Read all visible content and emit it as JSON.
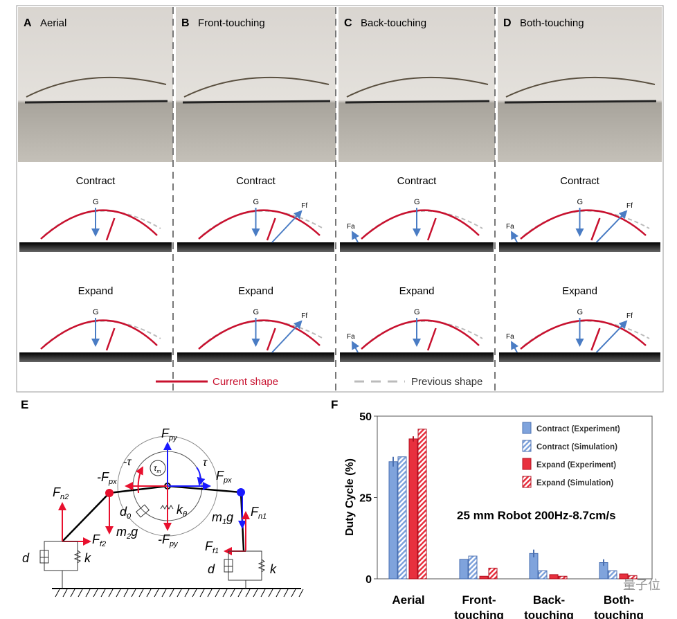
{
  "panels_top": [
    {
      "letter": "A",
      "title": "Aerial",
      "front_force": "",
      "back_force": "",
      "expand_front": "",
      "expand_back": ""
    },
    {
      "letter": "B",
      "title": "Front-touching",
      "front_force": "Ff",
      "back_force": "",
      "expand_front": "Ff",
      "expand_back": ""
    },
    {
      "letter": "C",
      "title": "Back-touching",
      "front_force": "",
      "back_force": "Fa",
      "expand_front": "",
      "expand_back": "Fa"
    },
    {
      "letter": "D",
      "title": "Both-touching",
      "front_force": "Ff",
      "back_force": "Fa",
      "expand_front": "Ff",
      "expand_back": "Fa"
    }
  ],
  "row_labels": {
    "contract": "Contract",
    "expand": "Expand",
    "gravity": "G"
  },
  "legend_top": {
    "current": "Current shape",
    "previous": "Previous shape"
  },
  "colors": {
    "current": "#c8102e",
    "previous": "#bbbbbb",
    "force": "#4a7cc4",
    "blue": "#1a1aff",
    "red": "#e8102e"
  },
  "panel_e": {
    "letter": "E",
    "labels": {
      "fpy": "F",
      "fpy_sub": "py",
      "neg_fpy": "-F",
      "fpx": "F",
      "fpx_sub": "px",
      "neg_fpx": "-F",
      "tau": "τ",
      "neg_tau": "-τ",
      "tau_m": "τ",
      "tau_m_sub": "m",
      "fn2": "F",
      "fn2_sub": "n2",
      "fn1": "F",
      "fn1_sub": "n1",
      "ff2": "F",
      "ff2_sub": "f2",
      "ff1": "F",
      "ff1_sub": "f1",
      "m2g": "m",
      "m2g_sub": "2",
      "m1g": "m",
      "m1g_sub": "1",
      "g": "g",
      "d0": "d",
      "d0_sub": "0",
      "k0": "k",
      "k0_sub": "θ",
      "d": "d",
      "k": "k"
    }
  },
  "panel_f": {
    "letter": "F",
    "annotation": "25 mm Robot 200Hz-8.7cm/s",
    "watermark": "量子位"
  },
  "chart_data": {
    "type": "bar",
    "title": "",
    "xlabel": "",
    "ylabel": "Duty Cycle (%)",
    "ylim": [
      0,
      50
    ],
    "yticks": [
      0,
      25,
      50
    ],
    "grid": false,
    "legend_position": "top-right",
    "categories": [
      [
        "Aerial"
      ],
      [
        "Front-",
        "touching"
      ],
      [
        "Back-",
        "touching"
      ],
      [
        "Both-",
        "touching"
      ]
    ],
    "series": [
      {
        "name": "Contract (Experiment)",
        "color": "#7fa3dc",
        "hatched": false,
        "values": [
          36,
          6,
          7.8,
          5
        ],
        "errors": [
          1.5,
          0,
          1.2,
          1
        ]
      },
      {
        "name": "Contract (Simulation)",
        "color": "#7fa3dc",
        "hatched": true,
        "values": [
          37.5,
          7,
          2.5,
          2.5
        ],
        "errors": [
          0,
          0,
          0,
          0
        ]
      },
      {
        "name": "Expand (Experiment)",
        "color": "#e8303e",
        "hatched": false,
        "values": [
          43,
          0.8,
          1.3,
          1.5
        ],
        "errors": [
          0.8,
          0,
          0,
          0
        ]
      },
      {
        "name": "Expand (Simulation)",
        "color": "#e8303e",
        "hatched": true,
        "values": [
          46,
          3.3,
          0.8,
          1
        ],
        "errors": [
          0,
          0,
          0,
          0
        ]
      }
    ]
  }
}
